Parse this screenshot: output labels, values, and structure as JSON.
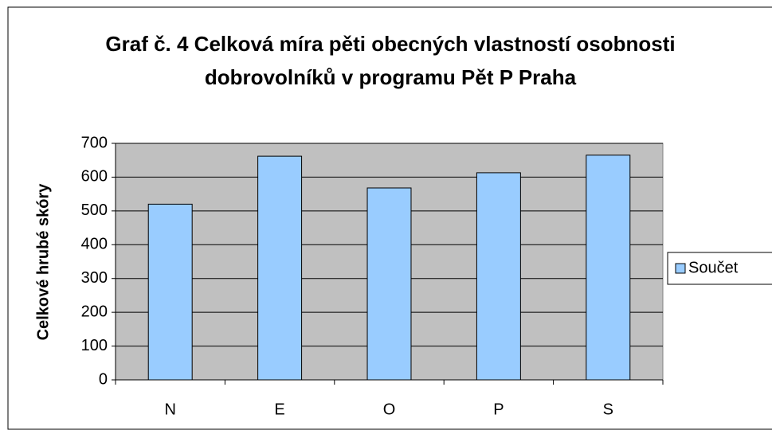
{
  "chart_data": {
    "type": "bar",
    "title": "Graf č. 4 Celková míra pěti obecných vlastností osobnosti dobrovolníků v programu Pět P Praha",
    "y_label": "Celkové hrubé skóry",
    "categories": [
      "N",
      "E",
      "O",
      "P",
      "S"
    ],
    "series": [
      {
        "name": "Součet",
        "color": "#99ccff",
        "values": [
          520,
          662,
          568,
          613,
          665
        ]
      }
    ],
    "ylim": [
      0,
      700
    ],
    "yticks": [
      0,
      100,
      200,
      300,
      400,
      500,
      600,
      700
    ],
    "grid": true,
    "legend": "right",
    "plot_background": "#c0c0c0"
  }
}
